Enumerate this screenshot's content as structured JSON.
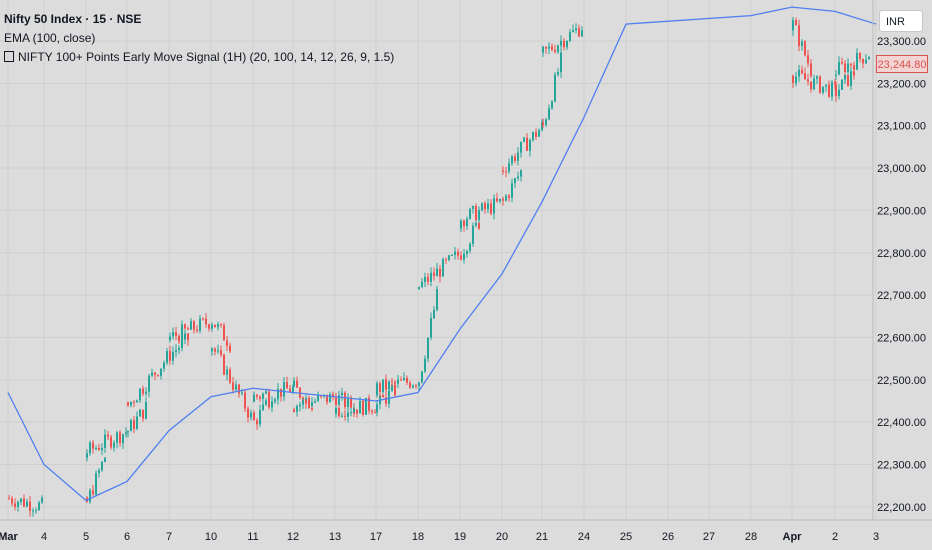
{
  "legend": {
    "symbol": "Nifty 50 Index · 15 · NSE",
    "ema": "EMA (100, close)",
    "signal": "NIFTY 100+ Points Early Move Signal (1H) (20, 100, 14, 12, 26, 9, 1.5)"
  },
  "currency": "INR",
  "last_price": "23,244.80",
  "colors": {
    "up": "#26a69a",
    "down": "#ef5350",
    "ema": "#4f7ff0",
    "background": "#dcdcdc",
    "grid": "#cfcfcf"
  },
  "chart_data": {
    "type": "candlestick",
    "title": "Nifty 50 Index · 15 · NSE",
    "x_tick_labels": [
      "Mar",
      "4",
      "5",
      "6",
      "7",
      "10",
      "11",
      "12",
      "13",
      "17",
      "18",
      "19",
      "20",
      "21",
      "24",
      "25",
      "26",
      "27",
      "28",
      "Apr",
      "2",
      "3"
    ],
    "y_tick_labels": [
      "23,300.00",
      "23,200.00",
      "23,100.00",
      "23,000.00",
      "22,900.00",
      "22,800.00",
      "22,700.00",
      "22,600.00",
      "22,500.00",
      "22,400.00",
      "22,300.00",
      "22,200.00"
    ],
    "ylim": [
      22160,
      23340
    ],
    "grid": true,
    "series": [
      {
        "name": "Nifty 50 Index",
        "type": "close",
        "x": [
          "Mar 3",
          "Mar 4",
          "Mar 5",
          "Mar 5",
          "Mar 6",
          "Mar 6",
          "Mar 7",
          "Mar 7",
          "Mar 10",
          "Mar 10",
          "Mar 11",
          "Mar 11",
          "Mar 12",
          "Mar 12",
          "Mar 13",
          "Mar 13",
          "Mar 17",
          "Mar 17",
          "Mar 18",
          "Mar 18",
          "Mar 19",
          "Mar 19",
          "Mar 20",
          "Mar 20",
          "Mar 21",
          "Mar 21",
          "Mar 24",
          "Apr 1",
          "Apr 1",
          "Apr 2",
          "Apr 2",
          "Apr 3"
        ],
        "values": [
          22220,
          22200,
          22210,
          22330,
          22380,
          22440,
          22560,
          22600,
          22640,
          22580,
          22400,
          22460,
          22480,
          22440,
          22460,
          22430,
          22440,
          22480,
          22500,
          22720,
          22800,
          22880,
          22920,
          23000,
          23100,
          23270,
          23340,
          23340,
          23220,
          23180,
          23230,
          23280
        ]
      },
      {
        "name": "EMA (100, close)",
        "type": "line",
        "x": [
          "Mar 3",
          "Mar 4",
          "Mar 5",
          "Mar 6",
          "Mar 7",
          "Mar 10",
          "Mar 11",
          "Mar 12",
          "Mar 13",
          "Mar 17",
          "Mar 18",
          "Mar 19",
          "Mar 20",
          "Mar 21",
          "Mar 24",
          "Mar 25",
          "Mar 28",
          "Apr 1",
          "Apr 2",
          "Apr 3"
        ],
        "values": [
          22470,
          22300,
          22215,
          22260,
          22380,
          22460,
          22480,
          22470,
          22460,
          22450,
          22470,
          22620,
          22750,
          22920,
          23120,
          23340,
          23360,
          23380,
          23370,
          23340
        ]
      }
    ]
  }
}
